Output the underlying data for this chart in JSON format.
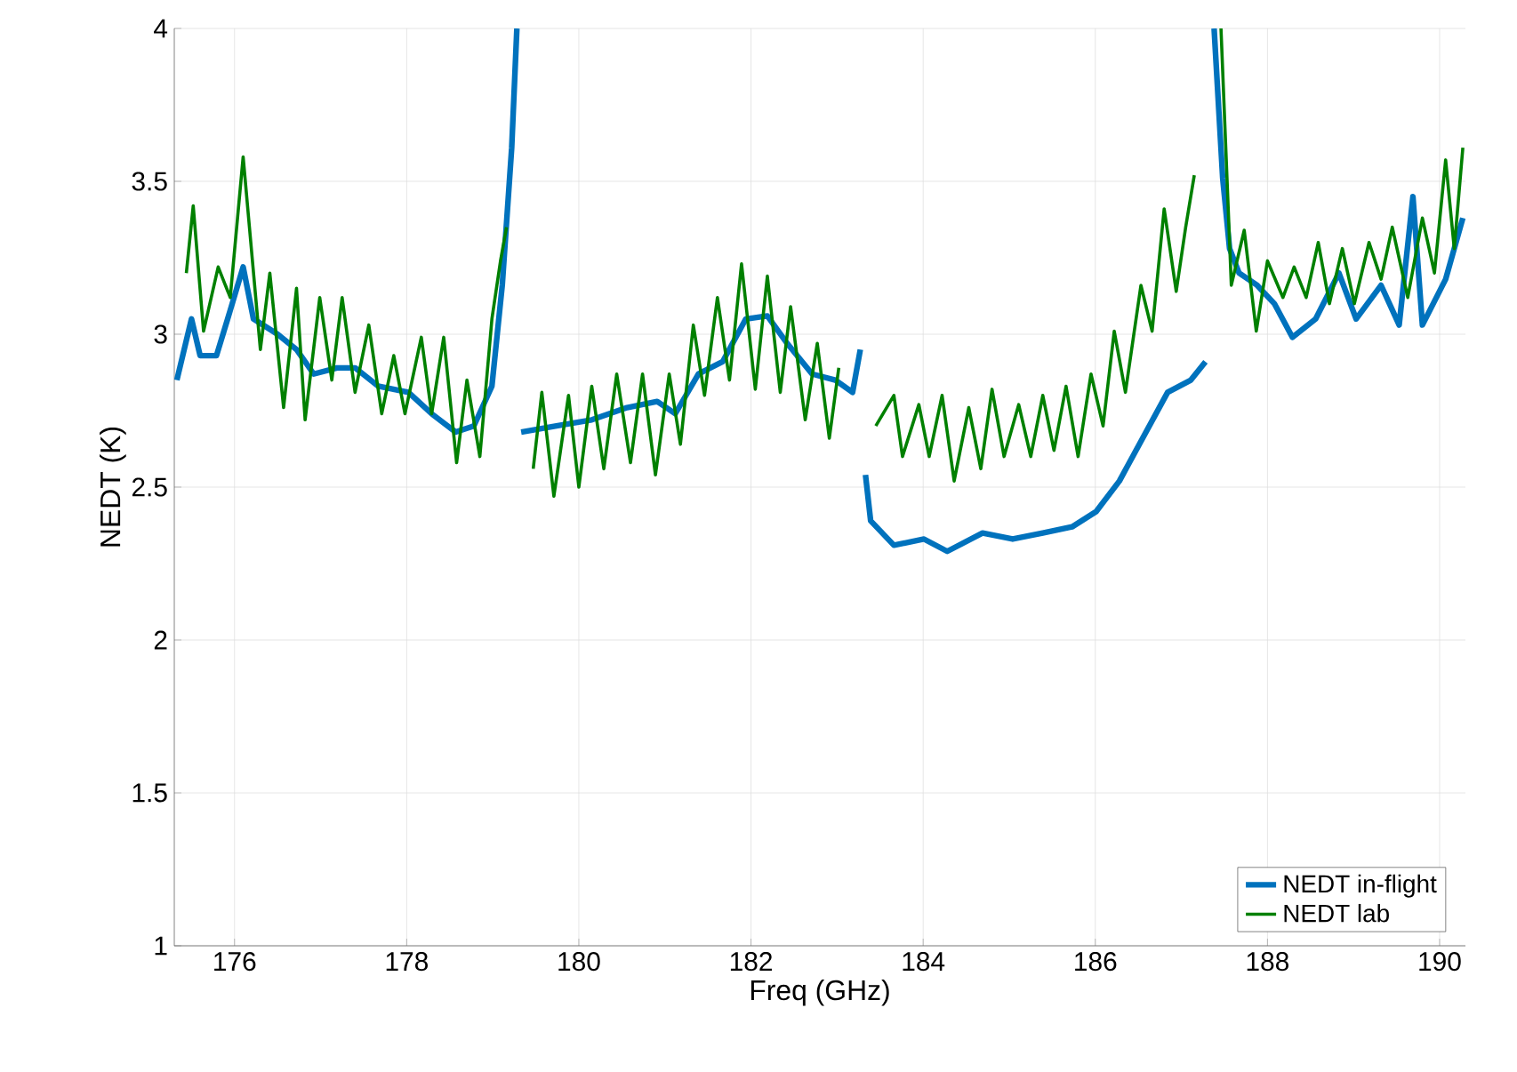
{
  "chart_data": {
    "type": "line",
    "xlabel": "Freq (GHz)",
    "ylabel": "NEDT (K)",
    "xlim": [
      175.3,
      190.3
    ],
    "ylim": [
      1,
      4
    ],
    "xticks": [
      176,
      178,
      180,
      182,
      184,
      186,
      188,
      190
    ],
    "yticks": [
      1,
      1.5,
      2,
      2.5,
      3,
      3.5,
      4
    ],
    "grid": true,
    "legend": "bottom right",
    "line_style": "solid",
    "marker": "none",
    "series": [
      {
        "name": "NEDT in-flight",
        "color": "#0072bd",
        "x": [
          175.33,
          175.5,
          175.6,
          175.79,
          175.92,
          176.1,
          176.22,
          176.5,
          176.72,
          176.92,
          177.19,
          177.4,
          177.67,
          178.02,
          178.29,
          178.57,
          178.78,
          178.99,
          179.11,
          179.22,
          179.28,
          179.3,
          179.33,
          179.74,
          180.15,
          180.56,
          180.91,
          181.12,
          181.39,
          181.67,
          181.94,
          182.19,
          182.42,
          182.71,
          182.98,
          183.18,
          183.27,
          183.3,
          183.33,
          183.39,
          183.66,
          184.01,
          184.28,
          184.69,
          185.04,
          185.39,
          185.73,
          186.01,
          186.28,
          186.55,
          186.84,
          187.11,
          187.28,
          187.33,
          187.38,
          187.48,
          187.56,
          187.67,
          187.88,
          188.08,
          188.29,
          188.56,
          188.83,
          189.03,
          189.32,
          189.53,
          189.69,
          189.8,
          190.07,
          190.27
        ],
        "values": [
          2.85,
          3.05,
          2.93,
          2.93,
          3.05,
          3.22,
          3.05,
          3.0,
          2.95,
          2.87,
          2.89,
          2.89,
          2.83,
          2.81,
          2.74,
          2.68,
          2.7,
          2.83,
          3.16,
          3.61,
          4.0,
          null,
          2.68,
          2.7,
          2.72,
          2.76,
          2.78,
          2.74,
          2.87,
          2.91,
          3.05,
          3.06,
          2.97,
          2.87,
          2.85,
          2.81,
          2.95,
          null,
          2.54,
          2.39,
          2.31,
          2.33,
          2.29,
          2.35,
          2.33,
          2.35,
          2.37,
          2.42,
          2.52,
          2.66,
          2.81,
          2.85,
          2.91,
          null,
          4.0,
          3.51,
          3.28,
          3.2,
          3.16,
          3.1,
          2.99,
          3.05,
          3.2,
          3.05,
          3.16,
          3.03,
          3.45,
          3.03,
          3.18,
          3.38
        ]
      },
      {
        "name": "NEDT lab",
        "color": "#008000",
        "x": [
          175.44,
          175.52,
          175.64,
          175.81,
          175.95,
          176.1,
          176.3,
          176.41,
          176.57,
          176.72,
          176.82,
          176.99,
          177.13,
          177.25,
          177.4,
          177.56,
          177.71,
          177.85,
          177.98,
          178.17,
          178.29,
          178.43,
          178.58,
          178.7,
          178.85,
          178.99,
          179.09,
          179.16,
          179.3,
          179.47,
          179.57,
          179.71,
          179.88,
          180.0,
          180.15,
          180.29,
          180.44,
          180.6,
          180.74,
          180.89,
          181.05,
          181.18,
          181.33,
          181.46,
          181.61,
          181.75,
          181.89,
          182.05,
          182.19,
          182.34,
          182.46,
          182.63,
          182.77,
          182.91,
          183.02,
          183.3,
          183.45,
          183.66,
          183.76,
          183.95,
          184.07,
          184.22,
          184.36,
          184.53,
          184.67,
          184.8,
          184.94,
          185.11,
          185.25,
          185.39,
          185.52,
          185.66,
          185.8,
          185.95,
          186.09,
          186.22,
          186.35,
          186.53,
          186.66,
          186.8,
          186.94,
          187.05,
          187.15,
          187.3,
          187.46,
          187.58,
          187.73,
          187.87,
          188.0,
          188.18,
          188.31,
          188.45,
          188.59,
          188.72,
          188.87,
          189.01,
          189.18,
          189.32,
          189.45,
          189.63,
          189.8,
          189.94,
          190.07,
          190.17,
          190.27
        ],
        "values": [
          3.2,
          3.42,
          3.01,
          3.22,
          3.12,
          3.58,
          2.95,
          3.2,
          2.76,
          3.15,
          2.72,
          3.12,
          2.85,
          3.12,
          2.81,
          3.03,
          2.74,
          2.93,
          2.74,
          2.99,
          2.74,
          2.99,
          2.58,
          2.85,
          2.6,
          3.05,
          3.24,
          3.35,
          null,
          2.56,
          2.81,
          2.47,
          2.8,
          2.5,
          2.83,
          2.56,
          2.87,
          2.58,
          2.87,
          2.54,
          2.87,
          2.64,
          3.03,
          2.8,
          3.12,
          2.85,
          3.23,
          2.82,
          3.19,
          2.81,
          3.09,
          2.72,
          2.97,
          2.66,
          2.89,
          null,
          2.7,
          2.8,
          2.6,
          2.77,
          2.6,
          2.8,
          2.52,
          2.76,
          2.56,
          2.82,
          2.6,
          2.77,
          2.6,
          2.8,
          2.62,
          2.83,
          2.6,
          2.87,
          2.7,
          3.01,
          2.81,
          3.16,
          3.01,
          3.41,
          3.14,
          3.35,
          3.52,
          null,
          4.0,
          3.16,
          3.34,
          3.01,
          3.24,
          3.12,
          3.22,
          3.12,
          3.3,
          3.1,
          3.28,
          3.1,
          3.3,
          3.18,
          3.35,
          3.12,
          3.38,
          3.2,
          3.57,
          3.28,
          3.61
        ]
      }
    ]
  }
}
